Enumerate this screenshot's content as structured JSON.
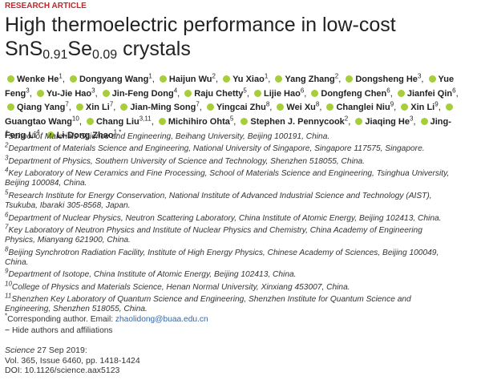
{
  "header": {
    "label": "RESEARCH ARTICLE",
    "title": {
      "line1": "High thermoelectric performance in low-cost",
      "formula": [
        {
          "text": "SnS"
        },
        {
          "sub": "0.91"
        },
        {
          "text": "Se"
        },
        {
          "sub": "0.09"
        },
        {
          "text": " crystals"
        }
      ]
    }
  },
  "authors": [
    {
      "name": "Wenke He",
      "aff": "1"
    },
    {
      "name": "Dongyang Wang",
      "aff": "1"
    },
    {
      "name": "Haijun Wu",
      "aff": "2"
    },
    {
      "name": "Yu Xiao",
      "aff": "1"
    },
    {
      "name": "Yang Zhang",
      "aff": "2"
    },
    {
      "name": "Dongsheng He",
      "aff": "3"
    },
    {
      "name": "Yue Feng",
      "aff": "3"
    },
    {
      "name": "Yu-Jie Hao",
      "aff": "3"
    },
    {
      "name": "Jin-Feng Dong",
      "aff": "4"
    },
    {
      "name": "Raju Chetty",
      "aff": "5"
    },
    {
      "name": "Lijie Hao",
      "aff": "6"
    },
    {
      "name": "Dongfeng Chen",
      "aff": "6"
    },
    {
      "name": "Jianfei Qin",
      "aff": "6"
    },
    {
      "name": "Qiang Yang",
      "aff": "7"
    },
    {
      "name": "Xin Li",
      "aff": "7"
    },
    {
      "name": "Jian-Ming Song",
      "aff": "7"
    },
    {
      "name": "Yingcai Zhu",
      "aff": "8"
    },
    {
      "name": "Wei Xu",
      "aff": "8"
    },
    {
      "name": "Changlei Niu",
      "aff": "9"
    },
    {
      "name": "Xin Li",
      "aff": "9"
    },
    {
      "name": "Guangtao Wang",
      "aff": "10"
    },
    {
      "name": "Chang Liu",
      "aff": "3,11"
    },
    {
      "name": "Michihiro Ohta",
      "aff": "5"
    },
    {
      "name": "Stephen J. Pennycook",
      "aff": "2"
    },
    {
      "name": "Jiaqing He",
      "aff": "3"
    },
    {
      "name": "Jing-Feng Li",
      "aff": "4"
    },
    {
      "name": "Li-Dong Zhao",
      "aff": "1,*"
    }
  ],
  "affiliations": [
    {
      "num": "1",
      "text": "School of Materials Science and Engineering, Beihang University, Beijing 100191, China."
    },
    {
      "num": "2",
      "text": "Department of Materials Science and Engineering, National University of Singapore, Singapore 117575, Singapore."
    },
    {
      "num": "3",
      "text": "Department of Physics, Southern University of Science and Technology, Shenzhen 518055, China."
    },
    {
      "num": "4",
      "text": "Key Laboratory of New Ceramics and Fine Processing, School of Materials Science and Engineering, Tsinghua University, Beijing 100084, China."
    },
    {
      "num": "5",
      "text": "Research Institute for Energy Conservation, National Institute of Advanced Industrial Science and Technology (AIST), Tsukuba, Ibaraki 305-8568, Japan."
    },
    {
      "num": "6",
      "text": "Department of Nuclear Physics, Neutron Scattering Laboratory, China Institute of Atomic Energy, Beijing 102413, China."
    },
    {
      "num": "7",
      "text": "Key Laboratory of Neutron Physics and Institute of Nuclear Physics and Chemistry, China Academy of Engineering Physics, Mianyang 621900, China."
    },
    {
      "num": "8",
      "text": "Beijing Synchrotron Radiation Facility, Institute of High Energy Physics, Chinese Academy of Sciences, Beijing 100049, China."
    },
    {
      "num": "9",
      "text": "Department of Isotope, China Institute of Atomic Energy, Beijing 102413, China."
    },
    {
      "num": "10",
      "text": "College of Physics and Materials Science, Henan Normal University, Xinxiang 453007, China."
    },
    {
      "num": "11",
      "text": "Shenzhen Key Laboratory of Quantum Science and Engineering, Shenzhen Institute for Quantum Science and Engineering, Shenzhen 518055, China."
    }
  ],
  "corresponding": {
    "mark": "*",
    "text": "Corresponding author. Email: ",
    "email": "zhaolidong@buaa.edu.cn"
  },
  "toggle": {
    "icon": "−",
    "text": "Hide authors and affiliations"
  },
  "citation": {
    "journal": "Science",
    "date": " 27 Sep 2019:",
    "volume": "Vol. 365, Issue 6460, pp. 1418-1424",
    "doi": "DOI: 10.1126/science.aax5123"
  }
}
